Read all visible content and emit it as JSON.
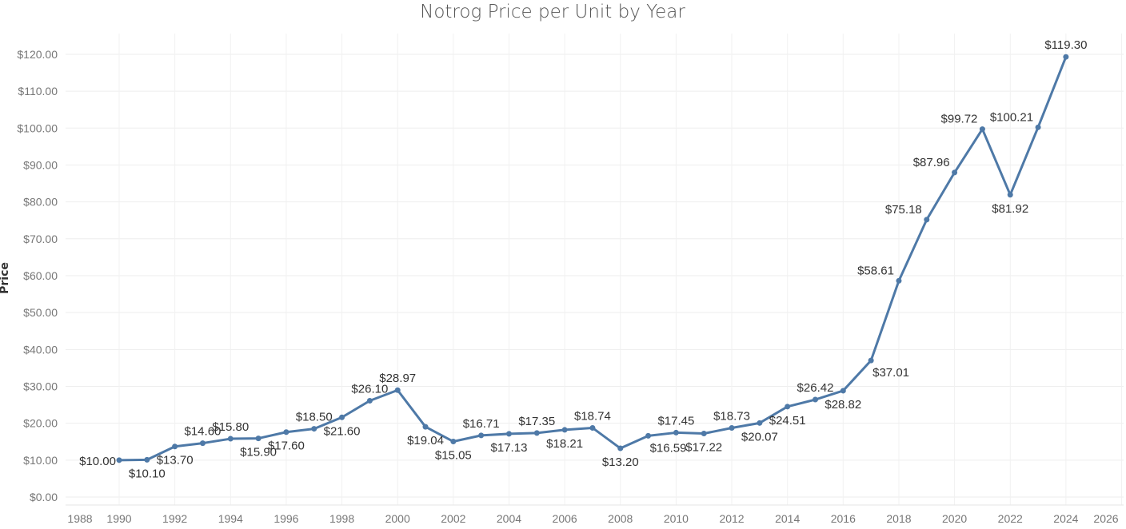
{
  "chart_data": {
    "type": "line",
    "title": "Notrog Price per Unit by Year",
    "ylabel": "Price",
    "xlabel": "",
    "x": [
      1990,
      1991,
      1992,
      1993,
      1994,
      1995,
      1996,
      1997,
      1998,
      1999,
      2000,
      2001,
      2002,
      2003,
      2004,
      2005,
      2006,
      2007,
      2008,
      2009,
      2010,
      2011,
      2012,
      2013,
      2014,
      2015,
      2016,
      2017,
      2018,
      2019,
      2020,
      2021,
      2022,
      2023,
      2024
    ],
    "values": [
      10.0,
      10.1,
      13.7,
      14.6,
      15.8,
      15.9,
      17.6,
      18.5,
      21.6,
      26.1,
      28.97,
      19.04,
      15.05,
      16.71,
      17.13,
      17.35,
      18.21,
      18.74,
      13.2,
      16.59,
      17.45,
      17.22,
      18.73,
      20.07,
      24.51,
      26.42,
      28.82,
      37.01,
      58.61,
      75.18,
      87.96,
      99.72,
      81.92,
      100.21,
      119.3
    ],
    "data_labels": [
      "$10.00",
      "$10.10",
      "$13.70",
      "$14.60",
      "$15.80",
      "$15.90",
      "$17.60",
      "$18.50",
      "$21.60",
      "$26.10",
      "$28.97",
      "$19.04",
      "$15.05",
      "$16.71",
      "$17.13",
      "$17.35",
      "$18.21",
      "$18.74",
      "$13.20",
      "$16.59",
      "$17.45",
      "$17.22",
      "$18.73",
      "$20.07",
      "$24.51",
      "$26.42",
      "$28.82",
      "$37.01",
      "$58.61",
      "$75.18",
      "$87.96",
      "$99.72",
      "$81.92",
      "$100.21",
      "$119.30"
    ],
    "xticks": [
      "1988",
      "1990",
      "1992",
      "1994",
      "1996",
      "1998",
      "2000",
      "2002",
      "2004",
      "2006",
      "2008",
      "2010",
      "2012",
      "2014",
      "2016",
      "2018",
      "2020",
      "2022",
      "2024",
      "2026"
    ],
    "yticks": [
      "$0.00",
      "$10.00",
      "$20.00",
      "$30.00",
      "$40.00",
      "$50.00",
      "$60.00",
      "$70.00",
      "$80.00",
      "$90.00",
      "$100.00",
      "$110.00",
      "$120.00"
    ],
    "ylim": [
      0,
      120
    ],
    "xlim": [
      1988,
      2026
    ],
    "grid": true,
    "line_color": "#4e79a7"
  }
}
